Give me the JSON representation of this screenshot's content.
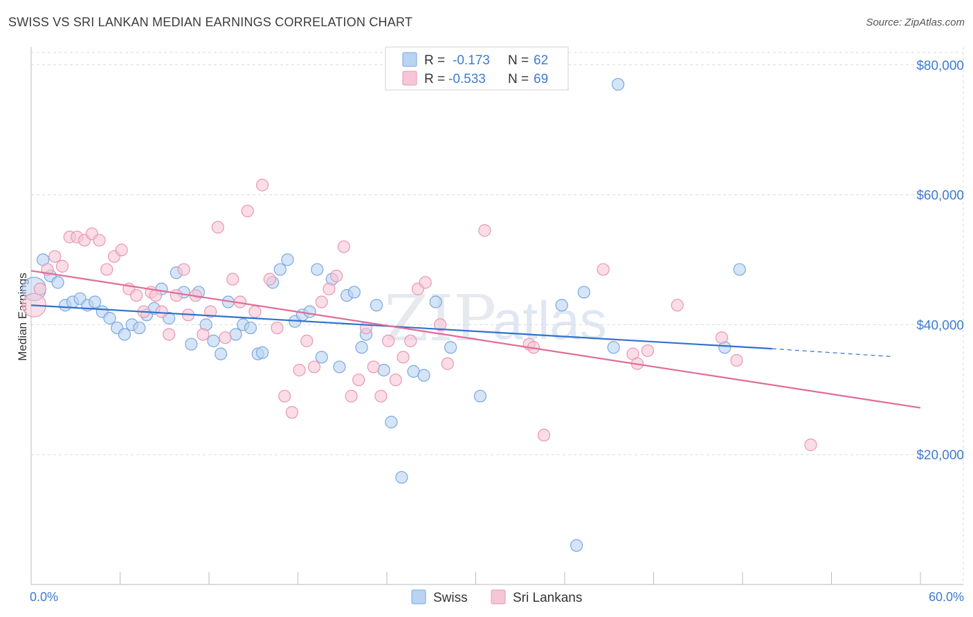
{
  "header": {
    "title": "SWISS VS SRI LANKAN MEDIAN EARNINGS CORRELATION CHART",
    "source": "Source: ZipAtlas.com"
  },
  "colors": {
    "swiss_fill": "#b9d3f2",
    "swiss_stroke": "#7aa7e0",
    "swiss_line": "#2f72cc",
    "srilanka_fill": "#f7c6d6",
    "srilanka_stroke": "#e996b3",
    "srilanka_line": "#e06b97",
    "tick_text": "#3d7bd1",
    "grid": "#d9d9d9"
  },
  "legend": {
    "r_label": "R =",
    "n_label": "N =",
    "swiss_r": "-0.173",
    "swiss_n": "62",
    "srilanka_r": "-0.533",
    "srilanka_n": "69"
  },
  "watermark": {
    "zip": "ZIP",
    "atlas": "atlas"
  },
  "chart_data": {
    "type": "scatter",
    "ylabel": "Median Earnings",
    "xlim": [
      0,
      60
    ],
    "ylim": [
      0,
      82000
    ],
    "x_tick_labels": [
      "0.0%",
      "60.0%"
    ],
    "y_ticks": [
      20000,
      40000,
      60000,
      80000
    ],
    "y_tick_labels": [
      "$20,000",
      "$40,000",
      "$60,000",
      "$80,000"
    ],
    "series": [
      {
        "name": "Swiss",
        "r": -0.173,
        "n": 62,
        "trend": {
          "x0": 0,
          "y0": 43000,
          "x1": 50,
          "y1": 36300,
          "dashed_to_x": 58,
          "dashed_to_y": 35100
        },
        "points": [
          [
            0.2,
            45500
          ],
          [
            0.8,
            50000
          ],
          [
            1.3,
            47500
          ],
          [
            1.8,
            46500
          ],
          [
            2.3,
            43000
          ],
          [
            2.8,
            43500
          ],
          [
            3.3,
            44000
          ],
          [
            3.8,
            43000
          ],
          [
            4.3,
            43500
          ],
          [
            4.8,
            42000
          ],
          [
            5.3,
            41000
          ],
          [
            5.8,
            39500
          ],
          [
            6.3,
            38500
          ],
          [
            6.8,
            40000
          ],
          [
            7.3,
            39500
          ],
          [
            7.8,
            41500
          ],
          [
            8.3,
            42500
          ],
          [
            8.8,
            45500
          ],
          [
            9.3,
            41000
          ],
          [
            9.8,
            48000
          ],
          [
            10.3,
            45000
          ],
          [
            10.8,
            37000
          ],
          [
            11.3,
            45000
          ],
          [
            11.8,
            40000
          ],
          [
            12.3,
            37500
          ],
          [
            12.8,
            35500
          ],
          [
            13.3,
            43500
          ],
          [
            13.8,
            38500
          ],
          [
            14.3,
            40000
          ],
          [
            14.8,
            39500
          ],
          [
            15.3,
            35500
          ],
          [
            15.6,
            35700
          ],
          [
            16.3,
            46500
          ],
          [
            16.8,
            48500
          ],
          [
            17.3,
            50000
          ],
          [
            17.8,
            40500
          ],
          [
            18.3,
            41500
          ],
          [
            18.8,
            42000
          ],
          [
            19.3,
            48500
          ],
          [
            19.6,
            35000
          ],
          [
            20.3,
            47000
          ],
          [
            20.8,
            33500
          ],
          [
            21.3,
            44500
          ],
          [
            21.8,
            45000
          ],
          [
            22.3,
            36500
          ],
          [
            22.6,
            38500
          ],
          [
            23.3,
            43000
          ],
          [
            23.8,
            33000
          ],
          [
            24.3,
            25000
          ],
          [
            25.0,
            16500
          ],
          [
            25.8,
            32800
          ],
          [
            26.5,
            32200
          ],
          [
            27.3,
            43500
          ],
          [
            28.3,
            36500
          ],
          [
            30.3,
            29000
          ],
          [
            35.8,
            43000
          ],
          [
            36.8,
            6000
          ],
          [
            37.3,
            45000
          ],
          [
            39.3,
            36500
          ],
          [
            39.6,
            77000
          ],
          [
            46.8,
            36500
          ],
          [
            47.8,
            48500
          ]
        ]
      },
      {
        "name": "Sri Lankans",
        "r": -0.533,
        "n": 69,
        "trend": {
          "x0": 0,
          "y0": 48300,
          "x1": 60,
          "y1": 27200
        },
        "points": [
          [
            0.2,
            43000
          ],
          [
            0.6,
            45500
          ],
          [
            1.1,
            48500
          ],
          [
            1.6,
            50500
          ],
          [
            2.1,
            49000
          ],
          [
            2.6,
            53500
          ],
          [
            3.1,
            53500
          ],
          [
            3.6,
            53000
          ],
          [
            4.1,
            54000
          ],
          [
            4.6,
            53000
          ],
          [
            5.1,
            48500
          ],
          [
            5.6,
            50500
          ],
          [
            6.1,
            51500
          ],
          [
            6.6,
            45500
          ],
          [
            7.1,
            44500
          ],
          [
            7.6,
            42000
          ],
          [
            8.1,
            45000
          ],
          [
            8.4,
            44500
          ],
          [
            8.8,
            42000
          ],
          [
            9.3,
            38500
          ],
          [
            9.8,
            44500
          ],
          [
            10.3,
            48500
          ],
          [
            10.6,
            41500
          ],
          [
            11.1,
            44500
          ],
          [
            11.6,
            38500
          ],
          [
            12.1,
            42000
          ],
          [
            12.6,
            55000
          ],
          [
            13.1,
            38000
          ],
          [
            13.6,
            47000
          ],
          [
            14.1,
            43500
          ],
          [
            14.6,
            57500
          ],
          [
            15.1,
            42000
          ],
          [
            15.6,
            61500
          ],
          [
            16.1,
            47000
          ],
          [
            16.6,
            39500
          ],
          [
            17.1,
            29000
          ],
          [
            17.6,
            26500
          ],
          [
            18.1,
            33000
          ],
          [
            18.6,
            37500
          ],
          [
            19.1,
            33500
          ],
          [
            19.6,
            43500
          ],
          [
            20.1,
            45500
          ],
          [
            20.6,
            47500
          ],
          [
            21.1,
            52000
          ],
          [
            21.6,
            29000
          ],
          [
            22.1,
            31500
          ],
          [
            22.6,
            39500
          ],
          [
            23.1,
            33500
          ],
          [
            23.6,
            29000
          ],
          [
            24.1,
            37500
          ],
          [
            24.6,
            31500
          ],
          [
            25.1,
            35000
          ],
          [
            25.6,
            37500
          ],
          [
            26.1,
            45500
          ],
          [
            26.6,
            46500
          ],
          [
            27.6,
            40000
          ],
          [
            28.1,
            34000
          ],
          [
            30.6,
            54500
          ],
          [
            33.6,
            37000
          ],
          [
            33.9,
            36500
          ],
          [
            34.6,
            23000
          ],
          [
            38.6,
            48500
          ],
          [
            40.6,
            35500
          ],
          [
            40.9,
            34000
          ],
          [
            41.6,
            36000
          ],
          [
            43.6,
            43000
          ],
          [
            46.6,
            38000
          ],
          [
            47.6,
            34500
          ],
          [
            52.6,
            21500
          ]
        ]
      }
    ]
  }
}
